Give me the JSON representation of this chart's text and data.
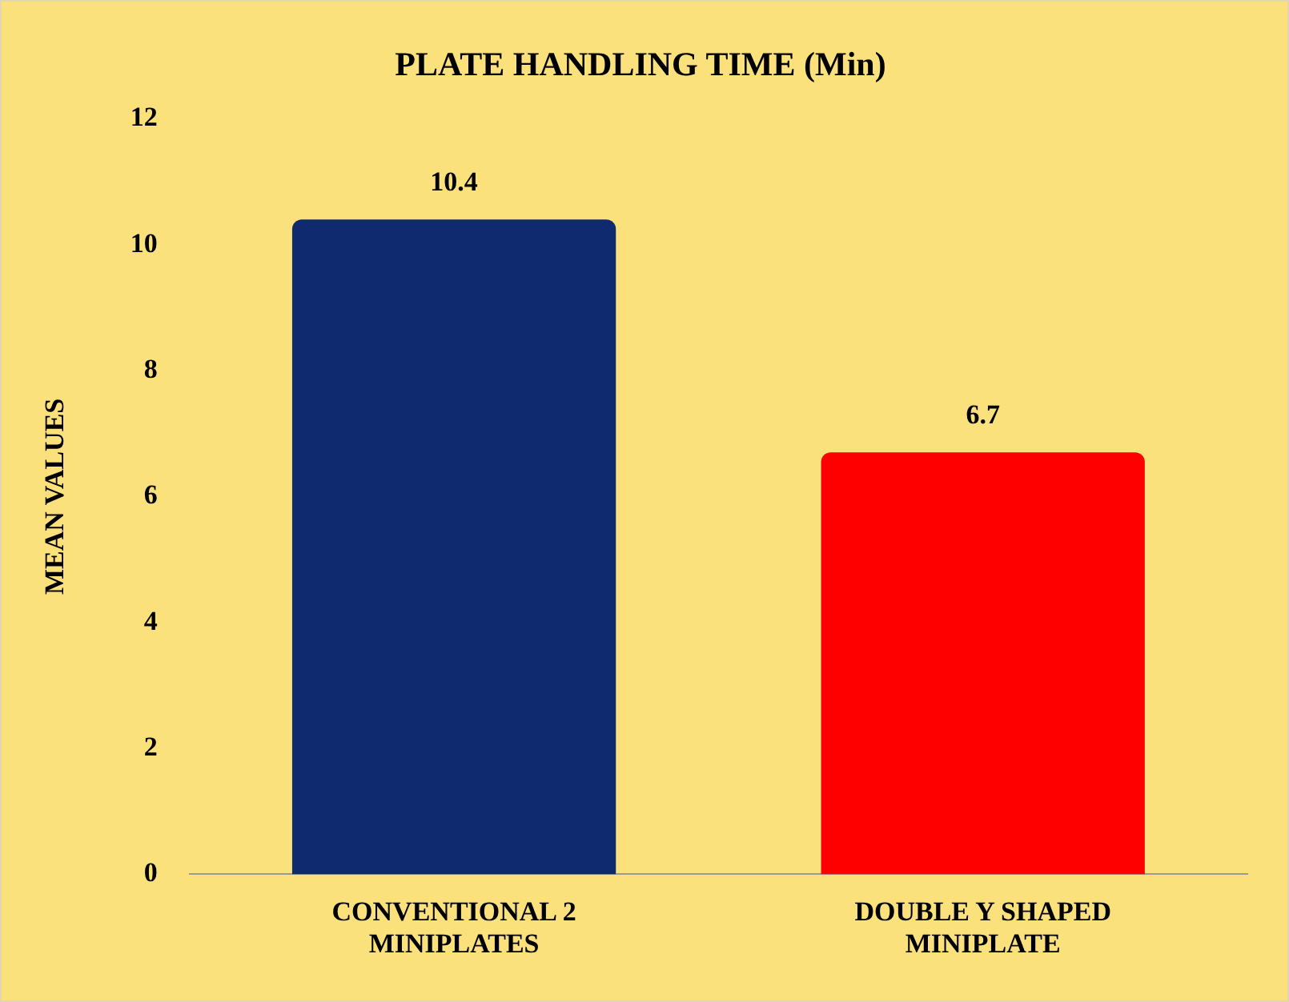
{
  "chart_data": {
    "type": "bar",
    "title": "PLATE HANDLING TIME (Min)",
    "ylabel": "MEAN VALUES",
    "categories": [
      "CONVENTIONAL 2 MINIPLATES",
      "DOUBLE Y SHAPED MINIPLATE"
    ],
    "values": [
      10.4,
      6.7
    ],
    "colors": [
      "#0f2a6e",
      "#ff0000"
    ],
    "ylim": [
      0,
      12
    ],
    "yticks": [
      0,
      2,
      4,
      6,
      8,
      10,
      12
    ],
    "grid": false,
    "legend": false,
    "data_labels": true
  }
}
